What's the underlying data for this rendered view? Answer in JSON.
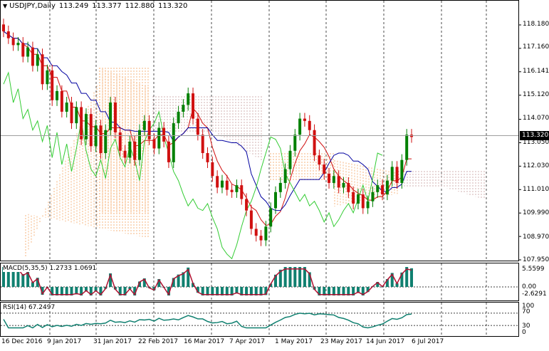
{
  "header": {
    "symbol": "USDJPY,Daily",
    "open": "113.249",
    "high": "113.377",
    "low": "112.880",
    "close": "113.320"
  },
  "current_price": "113.320",
  "price_axis": [
    "118.180",
    "117.160",
    "116.141",
    "115.120",
    "114.070",
    "113.050",
    "112.030",
    "111.010",
    "109.990",
    "108.970",
    "107.950"
  ],
  "date_axis": [
    "16 Dec 2016",
    "9 Jan 2017",
    "31 Jan 2017",
    "22 Feb 2017",
    "16 Mar 2017",
    "7 Apr 2017",
    "1 May 2017",
    "23 May 2017",
    "14 Jun 2017",
    "6 Jul 2017"
  ],
  "macd": {
    "label": "MACD(5,35,5) 1.2733 1.0691",
    "axis": [
      "5.5599",
      "0.00",
      "-2.6291"
    ]
  },
  "rsi": {
    "label": "RSI(14) 67.2497",
    "axis": [
      "100",
      "70",
      "30",
      "0"
    ]
  },
  "colors": {
    "bull": "#008000",
    "bear": "#d01010",
    "tenkan": "#d01010",
    "kijun": "#0000a0",
    "chikou": "#33cc33",
    "cloud_a": "#f4a460",
    "cloud_b": "#c8a0a0",
    "macd_hist": "#108070",
    "macd_signal": "#b01030",
    "rsi_line": "#108070"
  },
  "chart_data": {
    "type": "candlestick",
    "title": "USDJPY,Daily",
    "ylim": [
      107.95,
      118.18
    ],
    "close": [
      117.9,
      117.6,
      117.3,
      117.4,
      116.8,
      117.2,
      116.4,
      116.9,
      115.6,
      116.2,
      114.9,
      115.3,
      114.4,
      114.8,
      113.9,
      114.6,
      113.2,
      114.3,
      112.9,
      113.8,
      112.6,
      113.6,
      114.8,
      113.5,
      112.7,
      112.4,
      113.1,
      112.3,
      113.6,
      114.0,
      113.2,
      112.8,
      113.7,
      113.1,
      112.2,
      113.9,
      114.4,
      114.7,
      115.2,
      114.1,
      113.4,
      112.6,
      112.2,
      111.6,
      111.1,
      111.4,
      111.0,
      110.9,
      111.2,
      110.6,
      110.1,
      109.3,
      109.0,
      108.8,
      109.4,
      110.2,
      110.9,
      111.3,
      111.9,
      112.7,
      113.4,
      114.1,
      114.0,
      113.6,
      112.5,
      112.1,
      111.7,
      111.3,
      111.6,
      111.1,
      111.3,
      110.9,
      110.4,
      110.8,
      110.2,
      110.5,
      110.9,
      111.2,
      110.8,
      111.4,
      112.0,
      111.3,
      112.3,
      113.4,
      113.3
    ],
    "rsi_value": 67.2497
  }
}
